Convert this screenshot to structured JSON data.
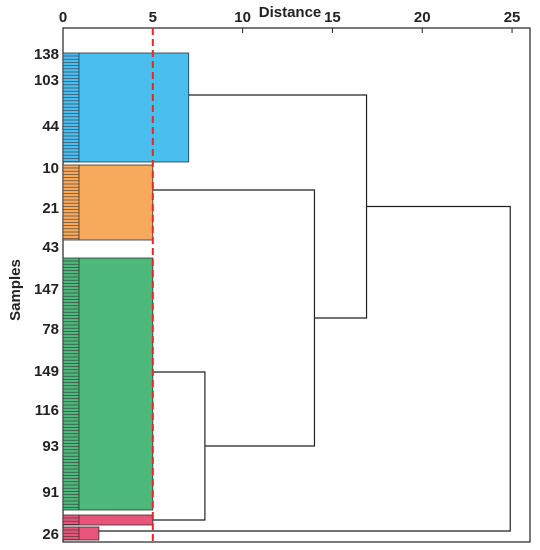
{
  "chart_data": {
    "type": "dendrogram",
    "x_label": "Distance",
    "y_label": "Samples",
    "xlim": [
      0,
      26
    ],
    "xticks": [
      0,
      5,
      10,
      15,
      20,
      25
    ],
    "leaf_labels": [
      "138",
      "103",
      "44",
      "10",
      "21",
      "43",
      "147",
      "78",
      "149",
      "116",
      "93",
      "91",
      "26"
    ],
    "cutoff": 5,
    "cutoff_color": "#e0282f",
    "clusters": [
      {
        "color": "#4bbef0",
        "height": 7
      },
      {
        "color": "#f7a95c",
        "height": 5
      },
      {
        "color": "#4cb87a",
        "height": 5
      },
      {
        "color": "#e8547a",
        "height": 5
      },
      {
        "color": "#e8547a",
        "height": 2
      }
    ],
    "merges": [
      7.9,
      14,
      16.9,
      24.9
    ]
  }
}
